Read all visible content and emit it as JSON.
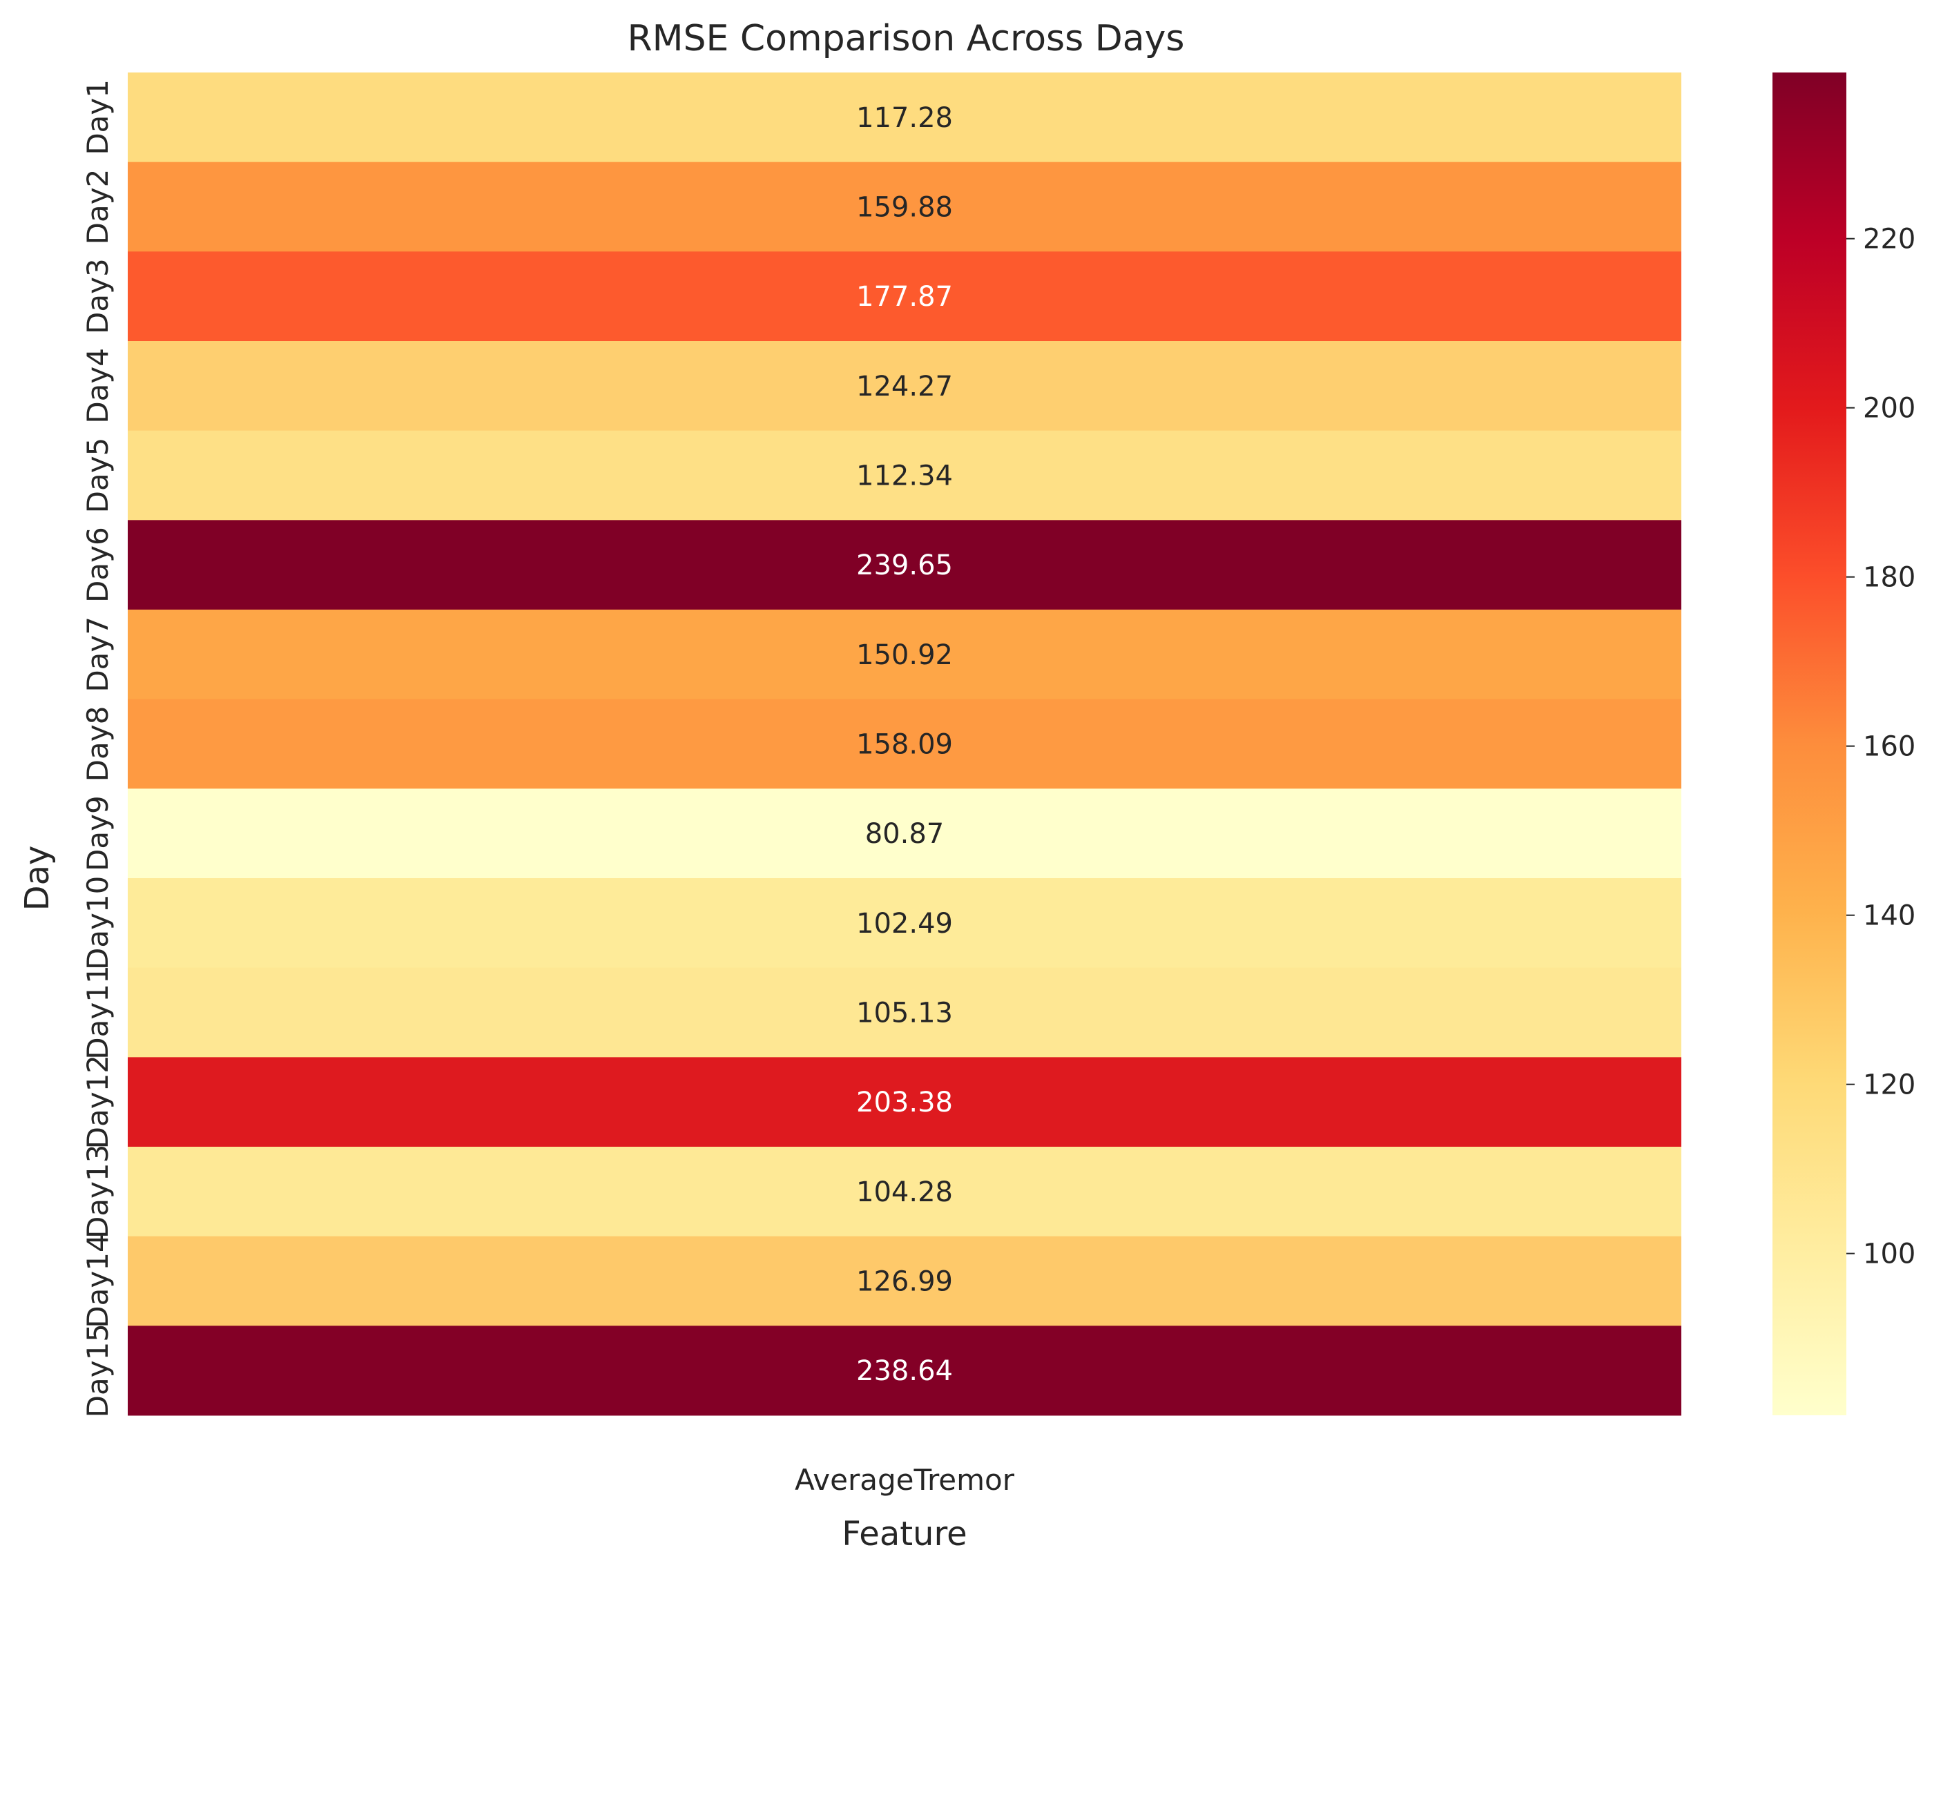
{
  "chart_data": {
    "type": "heatmap",
    "title": "RMSE Comparison Across Days",
    "xlabel": "Feature",
    "ylabel": "Day",
    "columns": [
      "AverageTremor"
    ],
    "rows": [
      "Day1",
      "Day2",
      "Day3",
      "Day4",
      "Day5",
      "Day6",
      "Day7",
      "Day8",
      "Day9",
      "Day10",
      "Day11",
      "Day12",
      "Day13",
      "Day14",
      "Day15"
    ],
    "values": [
      117.28,
      159.88,
      177.87,
      124.27,
      112.34,
      239.65,
      150.92,
      158.09,
      80.87,
      102.49,
      105.13,
      203.38,
      104.28,
      126.99,
      238.64
    ],
    "value_labels": [
      "117.28",
      "159.88",
      "177.87",
      "124.27",
      "112.34",
      "239.65",
      "150.92",
      "158.09",
      "80.87",
      "102.49",
      "105.13",
      "203.38",
      "104.28",
      "126.99",
      "238.64"
    ],
    "colormap": "YlOrRd",
    "colorbar": {
      "range": [
        80.87,
        239.65
      ],
      "ticks": [
        100,
        120,
        140,
        160,
        180,
        200,
        220
      ],
      "tick_labels": [
        "100",
        "120",
        "140",
        "160",
        "180",
        "200",
        "220"
      ]
    },
    "colors": {
      "cells": [
        "#fedc7f",
        "#fe9640",
        "#fd5a2d",
        "#fecf70",
        "#fee086",
        "#800026",
        "#fea647",
        "#fe9a42",
        "#ffffcc",
        "#feeb99",
        "#fee793",
        "#de1a1f",
        "#fee996",
        "#fec96a",
        "#830026"
      ],
      "text_dark": "#262626",
      "text_light": "#ffffff"
    },
    "grid": false,
    "legend": "colorbar-right"
  }
}
